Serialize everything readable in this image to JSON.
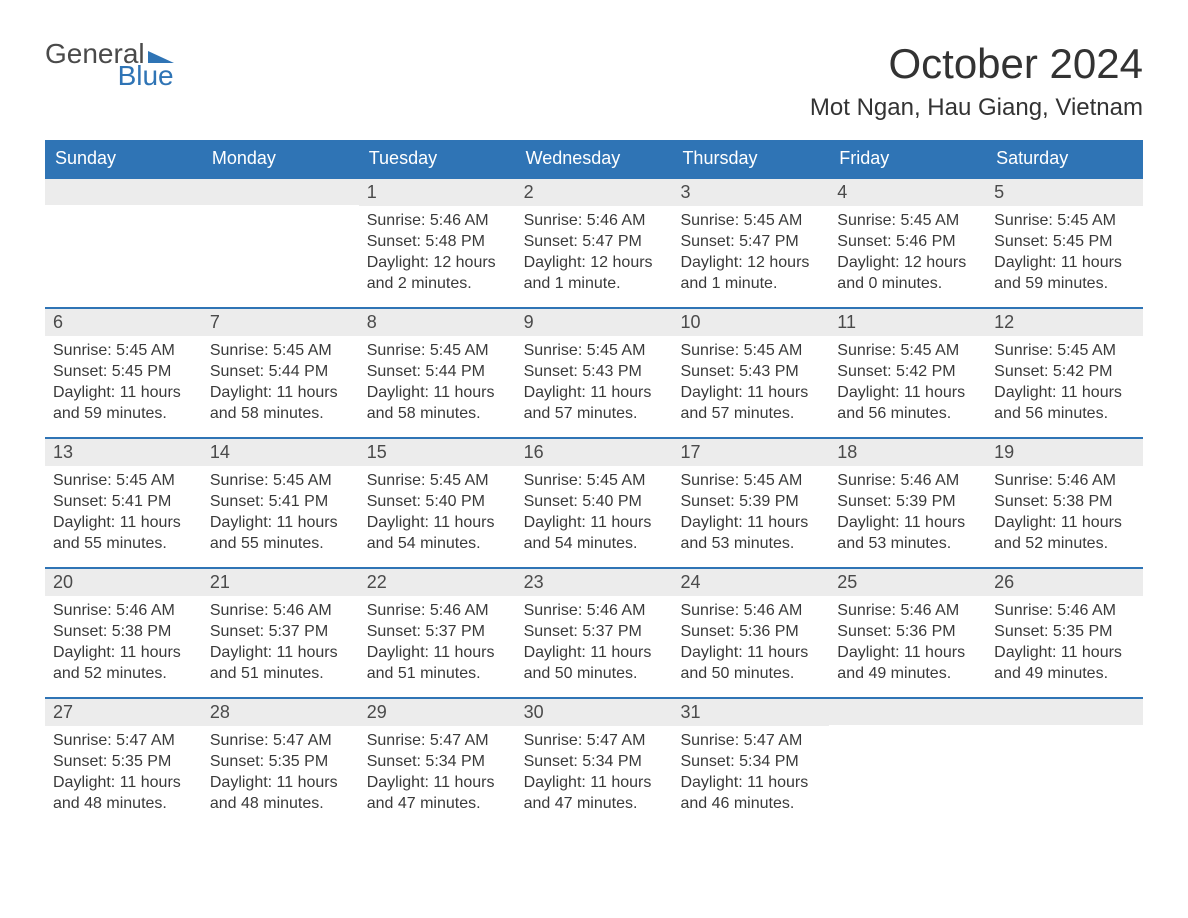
{
  "logo": {
    "text1": "General",
    "text2": "Blue"
  },
  "title": "October 2024",
  "location": "Mot Ngan, Hau Giang, Vietnam",
  "colors": {
    "header_bg": "#2f74b5",
    "header_text": "#ffffff",
    "daynum_bg": "#ececec",
    "border_top": "#2f74b5",
    "body_text": "#3a3a3a",
    "page_bg": "#ffffff"
  },
  "typography": {
    "title_fontsize": 42,
    "location_fontsize": 24,
    "weekday_fontsize": 18,
    "daynum_fontsize": 18,
    "body_fontsize": 16
  },
  "layout": {
    "columns": 7,
    "rows": 5
  },
  "weekdays": [
    "Sunday",
    "Monday",
    "Tuesday",
    "Wednesday",
    "Thursday",
    "Friday",
    "Saturday"
  ],
  "weeks": [
    [
      null,
      null,
      {
        "n": "1",
        "sunrise": "Sunrise: 5:46 AM",
        "sunset": "Sunset: 5:48 PM",
        "dl1": "Daylight: 12 hours",
        "dl2": "and 2 minutes."
      },
      {
        "n": "2",
        "sunrise": "Sunrise: 5:46 AM",
        "sunset": "Sunset: 5:47 PM",
        "dl1": "Daylight: 12 hours",
        "dl2": "and 1 minute."
      },
      {
        "n": "3",
        "sunrise": "Sunrise: 5:45 AM",
        "sunset": "Sunset: 5:47 PM",
        "dl1": "Daylight: 12 hours",
        "dl2": "and 1 minute."
      },
      {
        "n": "4",
        "sunrise": "Sunrise: 5:45 AM",
        "sunset": "Sunset: 5:46 PM",
        "dl1": "Daylight: 12 hours",
        "dl2": "and 0 minutes."
      },
      {
        "n": "5",
        "sunrise": "Sunrise: 5:45 AM",
        "sunset": "Sunset: 5:45 PM",
        "dl1": "Daylight: 11 hours",
        "dl2": "and 59 minutes."
      }
    ],
    [
      {
        "n": "6",
        "sunrise": "Sunrise: 5:45 AM",
        "sunset": "Sunset: 5:45 PM",
        "dl1": "Daylight: 11 hours",
        "dl2": "and 59 minutes."
      },
      {
        "n": "7",
        "sunrise": "Sunrise: 5:45 AM",
        "sunset": "Sunset: 5:44 PM",
        "dl1": "Daylight: 11 hours",
        "dl2": "and 58 minutes."
      },
      {
        "n": "8",
        "sunrise": "Sunrise: 5:45 AM",
        "sunset": "Sunset: 5:44 PM",
        "dl1": "Daylight: 11 hours",
        "dl2": "and 58 minutes."
      },
      {
        "n": "9",
        "sunrise": "Sunrise: 5:45 AM",
        "sunset": "Sunset: 5:43 PM",
        "dl1": "Daylight: 11 hours",
        "dl2": "and 57 minutes."
      },
      {
        "n": "10",
        "sunrise": "Sunrise: 5:45 AM",
        "sunset": "Sunset: 5:43 PM",
        "dl1": "Daylight: 11 hours",
        "dl2": "and 57 minutes."
      },
      {
        "n": "11",
        "sunrise": "Sunrise: 5:45 AM",
        "sunset": "Sunset: 5:42 PM",
        "dl1": "Daylight: 11 hours",
        "dl2": "and 56 minutes."
      },
      {
        "n": "12",
        "sunrise": "Sunrise: 5:45 AM",
        "sunset": "Sunset: 5:42 PM",
        "dl1": "Daylight: 11 hours",
        "dl2": "and 56 minutes."
      }
    ],
    [
      {
        "n": "13",
        "sunrise": "Sunrise: 5:45 AM",
        "sunset": "Sunset: 5:41 PM",
        "dl1": "Daylight: 11 hours",
        "dl2": "and 55 minutes."
      },
      {
        "n": "14",
        "sunrise": "Sunrise: 5:45 AM",
        "sunset": "Sunset: 5:41 PM",
        "dl1": "Daylight: 11 hours",
        "dl2": "and 55 minutes."
      },
      {
        "n": "15",
        "sunrise": "Sunrise: 5:45 AM",
        "sunset": "Sunset: 5:40 PM",
        "dl1": "Daylight: 11 hours",
        "dl2": "and 54 minutes."
      },
      {
        "n": "16",
        "sunrise": "Sunrise: 5:45 AM",
        "sunset": "Sunset: 5:40 PM",
        "dl1": "Daylight: 11 hours",
        "dl2": "and 54 minutes."
      },
      {
        "n": "17",
        "sunrise": "Sunrise: 5:45 AM",
        "sunset": "Sunset: 5:39 PM",
        "dl1": "Daylight: 11 hours",
        "dl2": "and 53 minutes."
      },
      {
        "n": "18",
        "sunrise": "Sunrise: 5:46 AM",
        "sunset": "Sunset: 5:39 PM",
        "dl1": "Daylight: 11 hours",
        "dl2": "and 53 minutes."
      },
      {
        "n": "19",
        "sunrise": "Sunrise: 5:46 AM",
        "sunset": "Sunset: 5:38 PM",
        "dl1": "Daylight: 11 hours",
        "dl2": "and 52 minutes."
      }
    ],
    [
      {
        "n": "20",
        "sunrise": "Sunrise: 5:46 AM",
        "sunset": "Sunset: 5:38 PM",
        "dl1": "Daylight: 11 hours",
        "dl2": "and 52 minutes."
      },
      {
        "n": "21",
        "sunrise": "Sunrise: 5:46 AM",
        "sunset": "Sunset: 5:37 PM",
        "dl1": "Daylight: 11 hours",
        "dl2": "and 51 minutes."
      },
      {
        "n": "22",
        "sunrise": "Sunrise: 5:46 AM",
        "sunset": "Sunset: 5:37 PM",
        "dl1": "Daylight: 11 hours",
        "dl2": "and 51 minutes."
      },
      {
        "n": "23",
        "sunrise": "Sunrise: 5:46 AM",
        "sunset": "Sunset: 5:37 PM",
        "dl1": "Daylight: 11 hours",
        "dl2": "and 50 minutes."
      },
      {
        "n": "24",
        "sunrise": "Sunrise: 5:46 AM",
        "sunset": "Sunset: 5:36 PM",
        "dl1": "Daylight: 11 hours",
        "dl2": "and 50 minutes."
      },
      {
        "n": "25",
        "sunrise": "Sunrise: 5:46 AM",
        "sunset": "Sunset: 5:36 PM",
        "dl1": "Daylight: 11 hours",
        "dl2": "and 49 minutes."
      },
      {
        "n": "26",
        "sunrise": "Sunrise: 5:46 AM",
        "sunset": "Sunset: 5:35 PM",
        "dl1": "Daylight: 11 hours",
        "dl2": "and 49 minutes."
      }
    ],
    [
      {
        "n": "27",
        "sunrise": "Sunrise: 5:47 AM",
        "sunset": "Sunset: 5:35 PM",
        "dl1": "Daylight: 11 hours",
        "dl2": "and 48 minutes."
      },
      {
        "n": "28",
        "sunrise": "Sunrise: 5:47 AM",
        "sunset": "Sunset: 5:35 PM",
        "dl1": "Daylight: 11 hours",
        "dl2": "and 48 minutes."
      },
      {
        "n": "29",
        "sunrise": "Sunrise: 5:47 AM",
        "sunset": "Sunset: 5:34 PM",
        "dl1": "Daylight: 11 hours",
        "dl2": "and 47 minutes."
      },
      {
        "n": "30",
        "sunrise": "Sunrise: 5:47 AM",
        "sunset": "Sunset: 5:34 PM",
        "dl1": "Daylight: 11 hours",
        "dl2": "and 47 minutes."
      },
      {
        "n": "31",
        "sunrise": "Sunrise: 5:47 AM",
        "sunset": "Sunset: 5:34 PM",
        "dl1": "Daylight: 11 hours",
        "dl2": "and 46 minutes."
      },
      null,
      null
    ]
  ]
}
